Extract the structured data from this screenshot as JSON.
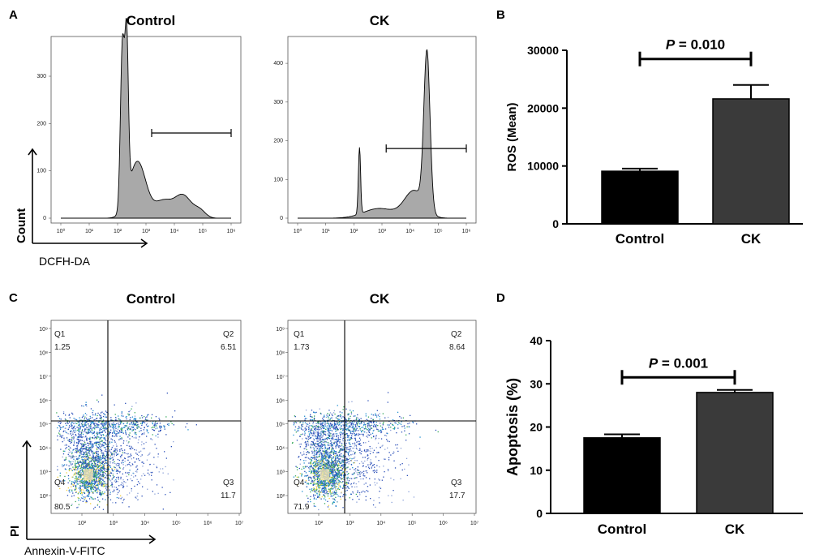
{
  "panels": {
    "a": {
      "letter": "A"
    },
    "b": {
      "letter": "B"
    },
    "c": {
      "letter": "C"
    },
    "d": {
      "letter": "D"
    }
  },
  "histograms": [
    {
      "title": "Control",
      "y_ticks": [
        "0",
        "100",
        "200",
        "300"
      ],
      "y_max": 360,
      "x_ticks": [
        "10⁰",
        "10¹",
        "10²",
        "10³",
        "10⁴",
        "10⁵",
        "10⁶"
      ],
      "peaks": [
        [
          2.17,
          345,
          0.07
        ],
        [
          2.32,
          330,
          0.06
        ],
        [
          2.7,
          120,
          0.3
        ],
        [
          3.6,
          35,
          0.3
        ],
        [
          4.3,
          48,
          0.3
        ],
        [
          4.9,
          15,
          0.2
        ]
      ],
      "gate": [
        3.2,
        6.0
      ],
      "gate_y": 180
    },
    {
      "title": "CK",
      "y_ticks": [
        "0",
        "100",
        "200",
        "300",
        "400"
      ],
      "y_max": 440,
      "x_ticks": [
        "10⁰",
        "10¹",
        "10²",
        "10³",
        "10⁴",
        "10⁵",
        "10⁶"
      ],
      "peaks": [
        [
          2.2,
          172,
          0.04
        ],
        [
          2.9,
          25,
          0.55
        ],
        [
          4.15,
          70,
          0.35
        ],
        [
          4.6,
          405,
          0.11
        ]
      ],
      "gate": [
        3.15,
        6.0
      ],
      "gate_y": 180
    }
  ],
  "histogram_axes": {
    "y_label": "Count",
    "x_label": "DCFH-DA"
  },
  "scatter_plots": [
    {
      "title": "Control",
      "quadrants": {
        "q1_label": "Q1",
        "q1_value": "1.25",
        "q2_label": "Q2",
        "q2_value": "6.51",
        "q3_label": "Q3",
        "q3_value": "11.7",
        "q4_label": "Q4",
        "q4_value": "80.5"
      }
    },
    {
      "title": "CK",
      "quadrants": {
        "q1_label": "Q1",
        "q1_value": "1.73",
        "q2_label": "Q2",
        "q2_value": "8.64",
        "q3_label": "Q3",
        "q3_value": "17.7",
        "q4_label": "Q4",
        "q4_value": "71.9"
      }
    }
  ],
  "scatter_axes": {
    "y_label": "PI",
    "x_label": "Annexin-V-FITC",
    "y_ticks": [
      "10²",
      "10³",
      "10⁴",
      "10⁵",
      "10⁶",
      "10⁷",
      "10⁸",
      "10⁹"
    ],
    "x_ticks": [
      "10²",
      "10³",
      "10⁴",
      "10⁵",
      "10⁶",
      "10⁷"
    ]
  },
  "colors": {
    "control_bar": "#000000",
    "ck_bar": "#3a3a3a",
    "histogram_fill": "#a9a9a9",
    "gate_line": "#000000"
  },
  "chart_data": [
    {
      "type": "bar",
      "panel": "B",
      "title": "",
      "xlabel": "",
      "ylabel": "ROS (Mean)",
      "categories": [
        "Control",
        "CK"
      ],
      "values": [
        9100,
        21600
      ],
      "errors": [
        450,
        2400
      ],
      "ylim": [
        0,
        30000
      ],
      "yticks": [
        0,
        10000,
        20000,
        30000
      ],
      "annotation": {
        "p_label": "P",
        "p_value": " = 0.010",
        "y": 28500
      }
    },
    {
      "type": "bar",
      "panel": "D",
      "title": "",
      "xlabel": "",
      "ylabel": "Apoptosis (%)",
      "categories": [
        "Control",
        "CK"
      ],
      "values": [
        17.5,
        28.0
      ],
      "errors": [
        0.8,
        0.6
      ],
      "ylim": [
        0,
        40
      ],
      "yticks": [
        0,
        10,
        20,
        30,
        40
      ],
      "annotation": {
        "p_label": "P",
        "p_value": " = 0.001",
        "y": 31.5
      }
    }
  ]
}
